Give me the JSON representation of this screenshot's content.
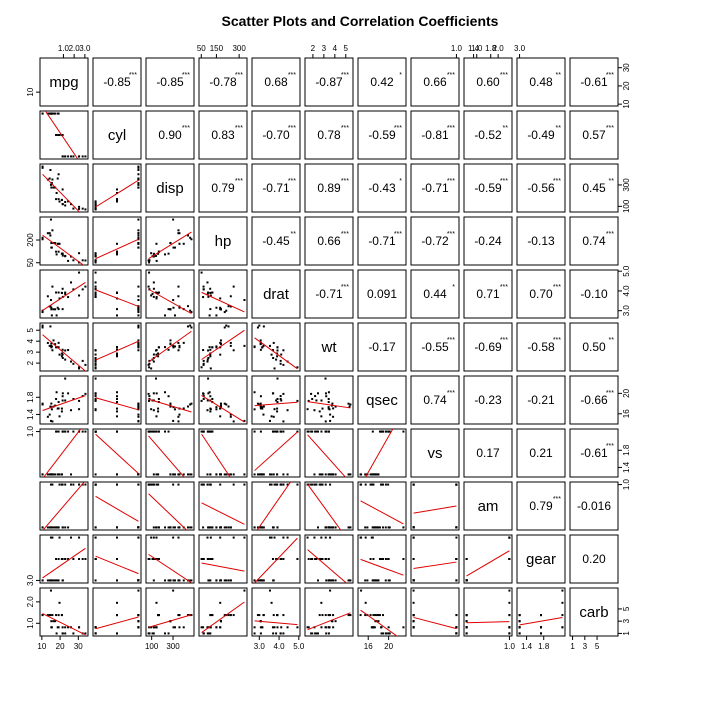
{
  "chart_data": {
    "type": "scatter",
    "title": "Scatter Plots and Correlation Coefficients",
    "variables": [
      "mpg",
      "cyl",
      "disp",
      "hp",
      "drat",
      "wt",
      "qsec",
      "vs",
      "am",
      "gear",
      "carb"
    ],
    "ranges": {
      "mpg": [
        10.4,
        33.9
      ],
      "cyl": [
        4,
        8
      ],
      "disp": [
        71.1,
        472
      ],
      "hp": [
        52,
        335
      ],
      "drat": [
        2.76,
        4.93
      ],
      "wt": [
        1.513,
        5.424
      ],
      "qsec": [
        14.5,
        22.9
      ],
      "vs": [
        0,
        1
      ],
      "am": [
        0,
        1
      ],
      "gear": [
        3,
        5
      ],
      "carb": [
        1,
        8
      ]
    },
    "correlations": [
      {
        "row": 0,
        "col": 1,
        "r": "-0.85",
        "stars": "***"
      },
      {
        "row": 0,
        "col": 2,
        "r": "-0.85",
        "stars": "***"
      },
      {
        "row": 0,
        "col": 3,
        "r": "-0.78",
        "stars": "***"
      },
      {
        "row": 0,
        "col": 4,
        "r": "0.68",
        "stars": "***"
      },
      {
        "row": 0,
        "col": 5,
        "r": "-0.87",
        "stars": "***"
      },
      {
        "row": 0,
        "col": 6,
        "r": "0.42",
        "stars": "*"
      },
      {
        "row": 0,
        "col": 7,
        "r": "0.66",
        "stars": "***"
      },
      {
        "row": 0,
        "col": 8,
        "r": "0.60",
        "stars": "***"
      },
      {
        "row": 0,
        "col": 9,
        "r": "0.48",
        "stars": "**"
      },
      {
        "row": 0,
        "col": 10,
        "r": "-0.61",
        "stars": "***"
      },
      {
        "row": 1,
        "col": 2,
        "r": "0.90",
        "stars": "***"
      },
      {
        "row": 1,
        "col": 3,
        "r": "0.83",
        "stars": "***"
      },
      {
        "row": 1,
        "col": 4,
        "r": "-0.70",
        "stars": "***"
      },
      {
        "row": 1,
        "col": 5,
        "r": "0.78",
        "stars": "***"
      },
      {
        "row": 1,
        "col": 6,
        "r": "-0.59",
        "stars": "***"
      },
      {
        "row": 1,
        "col": 7,
        "r": "-0.81",
        "stars": "***"
      },
      {
        "row": 1,
        "col": 8,
        "r": "-0.52",
        "stars": "**"
      },
      {
        "row": 1,
        "col": 9,
        "r": "-0.49",
        "stars": "**"
      },
      {
        "row": 1,
        "col": 10,
        "r": "0.57",
        "stars": "***"
      },
      {
        "row": 2,
        "col": 3,
        "r": "0.79",
        "stars": "***"
      },
      {
        "row": 2,
        "col": 4,
        "r": "-0.71",
        "stars": "***"
      },
      {
        "row": 2,
        "col": 5,
        "r": "0.89",
        "stars": "***"
      },
      {
        "row": 2,
        "col": 6,
        "r": "-0.43",
        "stars": "*"
      },
      {
        "row": 2,
        "col": 7,
        "r": "-0.71",
        "stars": "***"
      },
      {
        "row": 2,
        "col": 8,
        "r": "-0.59",
        "stars": "***"
      },
      {
        "row": 2,
        "col": 9,
        "r": "-0.56",
        "stars": "***"
      },
      {
        "row": 2,
        "col": 10,
        "r": "0.45",
        "stars": "**"
      },
      {
        "row": 3,
        "col": 4,
        "r": "-0.45",
        "stars": "**"
      },
      {
        "row": 3,
        "col": 5,
        "r": "0.66",
        "stars": "***"
      },
      {
        "row": 3,
        "col": 6,
        "r": "-0.71",
        "stars": "***"
      },
      {
        "row": 3,
        "col": 7,
        "r": "-0.72",
        "stars": "***"
      },
      {
        "row": 3,
        "col": 8,
        "r": "-0.24",
        "stars": ""
      },
      {
        "row": 3,
        "col": 9,
        "r": "-0.13",
        "stars": ""
      },
      {
        "row": 3,
        "col": 10,
        "r": "0.74",
        "stars": "***"
      },
      {
        "row": 4,
        "col": 5,
        "r": "-0.71",
        "stars": "***"
      },
      {
        "row": 4,
        "col": 6,
        "r": "0.091",
        "stars": ""
      },
      {
        "row": 4,
        "col": 7,
        "r": "0.44",
        "stars": "*"
      },
      {
        "row": 4,
        "col": 8,
        "r": "0.71",
        "stars": "***"
      },
      {
        "row": 4,
        "col": 9,
        "r": "0.70",
        "stars": "***"
      },
      {
        "row": 4,
        "col": 10,
        "r": "-0.10",
        "stars": ""
      },
      {
        "row": 5,
        "col": 6,
        "r": "-0.17",
        "stars": ""
      },
      {
        "row": 5,
        "col": 7,
        "r": "-0.55",
        "stars": "***"
      },
      {
        "row": 5,
        "col": 8,
        "r": "-0.69",
        "stars": "***"
      },
      {
        "row": 5,
        "col": 9,
        "r": "-0.58",
        "stars": "***"
      },
      {
        "row": 5,
        "col": 10,
        "r": "0.50",
        "stars": "**"
      },
      {
        "row": 6,
        "col": 7,
        "r": "0.74",
        "stars": "***"
      },
      {
        "row": 6,
        "col": 8,
        "r": "-0.23",
        "stars": ""
      },
      {
        "row": 6,
        "col": 9,
        "r": "-0.21",
        "stars": ""
      },
      {
        "row": 6,
        "col": 10,
        "r": "-0.66",
        "stars": "***"
      },
      {
        "row": 7,
        "col": 8,
        "r": "0.17",
        "stars": ""
      },
      {
        "row": 7,
        "col": 9,
        "r": "0.21",
        "stars": ""
      },
      {
        "row": 7,
        "col": 10,
        "r": "-0.61",
        "stars": "***"
      },
      {
        "row": 8,
        "col": 9,
        "r": "0.79",
        "stars": "***"
      },
      {
        "row": 8,
        "col": 10,
        "r": "-0.016",
        "stars": ""
      },
      {
        "row": 9,
        "col": 10,
        "r": "0.20",
        "stars": ""
      }
    ],
    "axis_ticks": {
      "top": [
        {
          "col": 1,
          "values": [
            1.0,
            2.0,
            3.0
          ],
          "labels": [
            "1.0",
            "2.0",
            "3.0"
          ]
        },
        {
          "col": 3,
          "values": [
            50,
            150,
            300
          ],
          "labels": [
            "50",
            "150",
            "300"
          ]
        },
        {
          "col": 5,
          "values": [
            2,
            3,
            4,
            5
          ],
          "labels": [
            "2",
            "3",
            "4",
            "5"
          ]
        },
        {
          "col": 7,
          "values": [
            1.0,
            1.4,
            1.8
          ],
          "labels": [
            "1.0",
            "1.4",
            "1.8"
          ]
        },
        {
          "col": 9,
          "values": [
            1.0,
            2.0,
            3.0
          ],
          "labels": [
            "1.0",
            "2.0",
            "3.0"
          ]
        }
      ],
      "bottom": [
        {
          "col": 0,
          "values": [
            10,
            20,
            30
          ],
          "labels": [
            "10",
            "20",
            "30"
          ]
        },
        {
          "col": 2,
          "values": [
            100,
            300
          ],
          "labels": [
            "100",
            "300"
          ]
        },
        {
          "col": 4,
          "values": [
            3.0,
            4.0,
            5.0
          ],
          "labels": [
            "3.0",
            "4.0",
            "5.0"
          ]
        },
        {
          "col": 6,
          "values": [
            16,
            20
          ],
          "labels": [
            "16",
            "20"
          ]
        },
        {
          "col": 8,
          "values": [
            1.0,
            1.4,
            1.8
          ],
          "labels": [
            "1.0",
            "1.4",
            "1.8"
          ]
        },
        {
          "col": 10,
          "values": [
            1,
            3,
            5
          ],
          "labels": [
            "1",
            "3",
            "5"
          ]
        }
      ],
      "left": [
        {
          "row": 1,
          "values": [
            10,
            20,
            30
          ],
          "labels": [
            "10",
            "20",
            "30"
          ]
        },
        {
          "row": 3,
          "values": [
            50,
            200
          ],
          "labels": [
            "50",
            "200"
          ]
        },
        {
          "row": 5,
          "values": [
            2,
            3,
            4,
            5
          ],
          "labels": [
            "2",
            "3",
            "4",
            "5"
          ]
        },
        {
          "row": 7,
          "values": [
            1.0,
            1.4,
            1.8
          ],
          "labels": [
            "1.0",
            "1.4",
            "1.8"
          ]
        },
        {
          "row": 9,
          "values": [
            1.0,
            2.0,
            3.0
          ],
          "labels": [
            "1.0",
            "2.0",
            "3.0"
          ]
        }
      ],
      "right": [
        {
          "row": 0,
          "values": [
            10,
            20,
            30
          ],
          "labels": [
            "10",
            "20",
            "30"
          ]
        },
        {
          "row": 2,
          "values": [
            100,
            300
          ],
          "labels": [
            "100",
            "300"
          ]
        },
        {
          "row": 4,
          "values": [
            3.0,
            4.0,
            5.0
          ],
          "labels": [
            "3.0",
            "4.0",
            "5.0"
          ]
        },
        {
          "row": 6,
          "values": [
            16,
            20
          ],
          "labels": [
            "16",
            "20"
          ]
        },
        {
          "row": 8,
          "values": [
            1.0,
            1.4,
            1.8
          ],
          "labels": [
            "1.0",
            "1.4",
            "1.8"
          ]
        },
        {
          "row": 10,
          "values": [
            1,
            3,
            5
          ],
          "labels": [
            "1",
            "3",
            "5"
          ]
        }
      ]
    },
    "fit_line_color": "#e00000",
    "point_color": "#000000",
    "observations": [
      [
        21.0,
        6,
        160.0,
        110,
        3.9,
        2.62,
        16.46,
        0,
        1,
        4,
        4
      ],
      [
        21.0,
        6,
        160.0,
        110,
        3.9,
        2.875,
        17.02,
        0,
        1,
        4,
        4
      ],
      [
        22.8,
        4,
        108.0,
        93,
        3.85,
        2.32,
        18.61,
        1,
        1,
        4,
        1
      ],
      [
        21.4,
        6,
        258.0,
        110,
        3.08,
        3.215,
        19.44,
        1,
        0,
        3,
        1
      ],
      [
        18.7,
        8,
        360.0,
        175,
        3.15,
        3.44,
        17.02,
        0,
        0,
        3,
        2
      ],
      [
        18.1,
        6,
        225.0,
        105,
        2.76,
        3.46,
        20.22,
        1,
        0,
        3,
        1
      ],
      [
        14.3,
        8,
        360.0,
        245,
        3.21,
        3.57,
        15.84,
        0,
        0,
        3,
        4
      ],
      [
        24.4,
        4,
        146.7,
        62,
        3.69,
        3.19,
        20.0,
        1,
        0,
        4,
        2
      ],
      [
        22.8,
        4,
        140.8,
        95,
        3.92,
        3.15,
        22.9,
        1,
        0,
        4,
        2
      ],
      [
        19.2,
        6,
        167.6,
        123,
        3.92,
        3.44,
        18.3,
        1,
        0,
        4,
        4
      ],
      [
        17.8,
        6,
        167.6,
        123,
        3.92,
        3.44,
        18.9,
        1,
        0,
        4,
        4
      ],
      [
        16.4,
        8,
        275.8,
        180,
        3.07,
        4.07,
        17.4,
        0,
        0,
        3,
        3
      ],
      [
        17.3,
        8,
        275.8,
        180,
        3.07,
        3.73,
        17.6,
        0,
        0,
        3,
        3
      ],
      [
        15.2,
        8,
        275.8,
        180,
        3.07,
        3.78,
        18.0,
        0,
        0,
        3,
        3
      ],
      [
        10.4,
        8,
        472.0,
        205,
        2.93,
        5.25,
        17.98,
        0,
        0,
        3,
        4
      ],
      [
        10.4,
        8,
        460.0,
        215,
        3.0,
        5.424,
        17.82,
        0,
        0,
        3,
        4
      ],
      [
        14.7,
        8,
        440.0,
        230,
        3.23,
        5.345,
        17.42,
        0,
        0,
        3,
        4
      ],
      [
        32.4,
        4,
        78.7,
        66,
        4.08,
        2.2,
        19.47,
        1,
        1,
        4,
        1
      ],
      [
        30.4,
        4,
        75.7,
        52,
        4.93,
        1.615,
        18.52,
        1,
        1,
        4,
        2
      ],
      [
        33.9,
        4,
        71.1,
        65,
        4.22,
        1.835,
        19.9,
        1,
        1,
        4,
        1
      ],
      [
        21.5,
        4,
        120.1,
        97,
        3.7,
        2.465,
        20.01,
        1,
        0,
        3,
        1
      ],
      [
        15.5,
        8,
        318.0,
        150,
        2.76,
        3.52,
        16.87,
        0,
        0,
        3,
        2
      ],
      [
        15.2,
        8,
        304.0,
        150,
        3.15,
        3.435,
        17.3,
        0,
        0,
        3,
        2
      ],
      [
        13.3,
        8,
        350.0,
        245,
        3.73,
        3.84,
        15.41,
        0,
        0,
        3,
        4
      ],
      [
        19.2,
        8,
        400.0,
        175,
        3.08,
        3.845,
        17.05,
        0,
        0,
        3,
        2
      ],
      [
        27.3,
        4,
        79.0,
        66,
        4.08,
        1.935,
        18.9,
        1,
        1,
        4,
        1
      ],
      [
        26.0,
        4,
        120.3,
        91,
        4.43,
        2.14,
        16.7,
        0,
        1,
        5,
        2
      ],
      [
        30.4,
        4,
        95.1,
        113,
        3.77,
        1.513,
        16.9,
        1,
        1,
        5,
        2
      ],
      [
        15.8,
        8,
        351.0,
        264,
        4.22,
        3.17,
        14.5,
        0,
        1,
        5,
        4
      ],
      [
        19.7,
        6,
        145.0,
        175,
        3.62,
        2.77,
        15.5,
        0,
        1,
        5,
        6
      ],
      [
        15.0,
        8,
        301.0,
        335,
        3.54,
        3.57,
        14.6,
        0,
        1,
        5,
        8
      ],
      [
        21.4,
        4,
        121.0,
        109,
        4.11,
        2.78,
        18.6,
        1,
        1,
        4,
        2
      ]
    ]
  }
}
